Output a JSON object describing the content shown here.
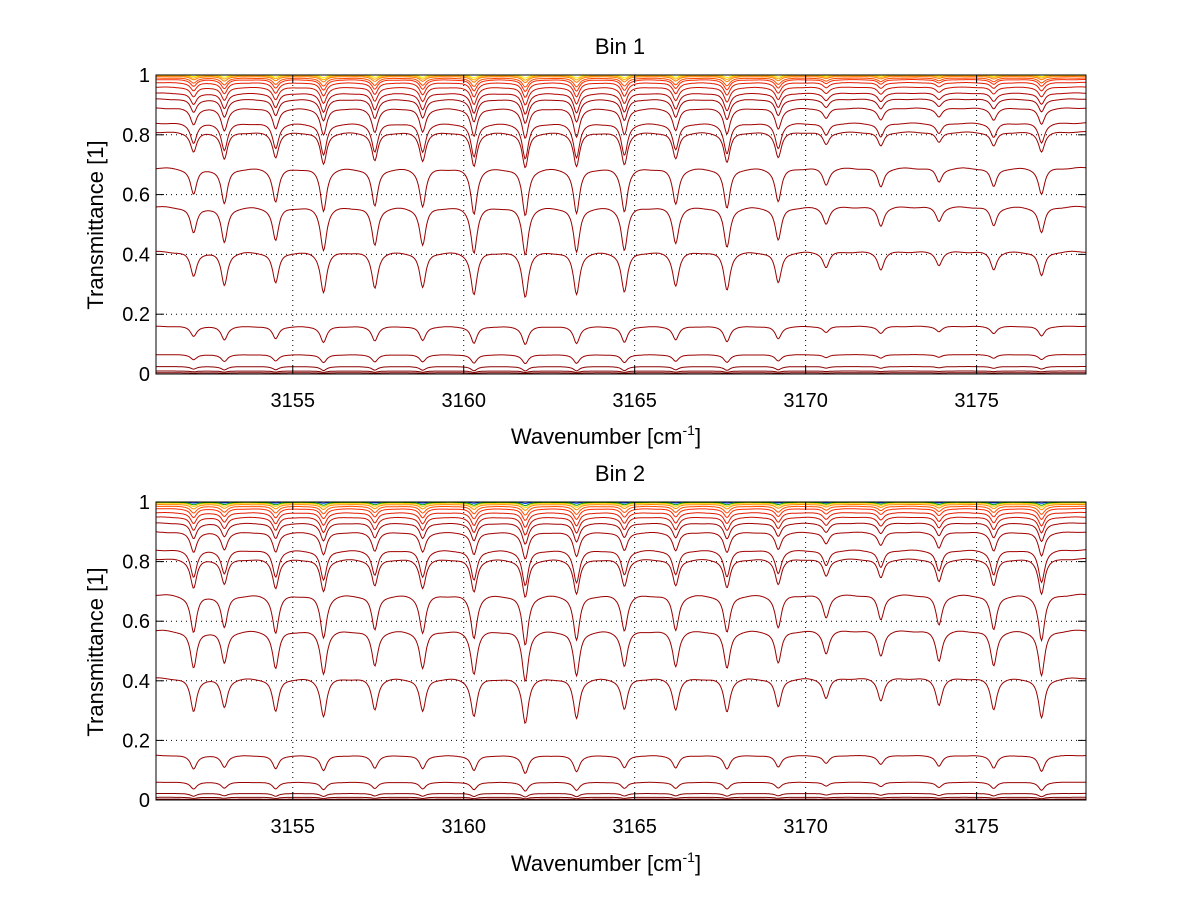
{
  "chart_data": [
    {
      "type": "line",
      "title": "Bin 1",
      "xlabel": "Wavenumber [cm",
      "xlabel_sup": "-1",
      "xlabel_close": "]",
      "ylabel": "Transmittance [1]",
      "xlim": [
        3151,
        3178.2
      ],
      "ylim": [
        0,
        1
      ],
      "xticks": [
        3155,
        3160,
        3165,
        3170,
        3175
      ],
      "xtick_labels": [
        "3155",
        "3160",
        "3165",
        "3170",
        "3175"
      ],
      "yticks": [
        0,
        0.2,
        0.4,
        0.6,
        0.8,
        1
      ],
      "ytick_labels": [
        "0",
        "0.2",
        "0.4",
        "0.6",
        "0.8",
        "1"
      ],
      "grid": true,
      "absorption_lines": [
        {
          "x": 3152.1,
          "rel_depth": 0.55
        },
        {
          "x": 3153.0,
          "rel_depth": 0.75
        },
        {
          "x": 3154.5,
          "rel_depth": 0.7
        },
        {
          "x": 3155.9,
          "rel_depth": 0.9
        },
        {
          "x": 3157.4,
          "rel_depth": 0.8
        },
        {
          "x": 3158.8,
          "rel_depth": 0.8
        },
        {
          "x": 3160.3,
          "rel_depth": 0.95
        },
        {
          "x": 3161.8,
          "rel_depth": 1.0
        },
        {
          "x": 3163.3,
          "rel_depth": 0.95
        },
        {
          "x": 3164.7,
          "rel_depth": 0.9
        },
        {
          "x": 3166.2,
          "rel_depth": 0.75
        },
        {
          "x": 3167.7,
          "rel_depth": 0.85
        },
        {
          "x": 3169.2,
          "rel_depth": 0.7
        },
        {
          "x": 3170.6,
          "rel_depth": 0.35
        },
        {
          "x": 3172.2,
          "rel_depth": 0.4
        },
        {
          "x": 3173.9,
          "rel_depth": 0.3
        },
        {
          "x": 3175.5,
          "rel_depth": 0.4
        },
        {
          "x": 3176.9,
          "rel_depth": 0.55
        }
      ],
      "series": [
        {
          "baseline": 1.0,
          "depth": 0.01,
          "color": "#ffee00"
        },
        {
          "baseline": 0.998,
          "depth": 0.015,
          "color": "#ffb000"
        },
        {
          "baseline": 0.995,
          "depth": 0.02,
          "color": "#ff7a00"
        },
        {
          "baseline": 0.99,
          "depth": 0.03,
          "color": "#ff4a00"
        },
        {
          "baseline": 0.985,
          "depth": 0.04,
          "color": "#ff2a00"
        },
        {
          "baseline": 0.975,
          "depth": 0.05,
          "color": "#e31a00"
        },
        {
          "baseline": 0.96,
          "depth": 0.06,
          "color": "#cc1100"
        },
        {
          "baseline": 0.94,
          "depth": 0.07,
          "color": "#b00000"
        },
        {
          "baseline": 0.92,
          "depth": 0.08,
          "color": "#a00000"
        },
        {
          "baseline": 0.89,
          "depth": 0.1,
          "color": "#a00000"
        },
        {
          "baseline": 0.84,
          "depth": 0.12,
          "color": "#a00000"
        },
        {
          "baseline": 0.81,
          "depth": 0.12,
          "color": "#990000"
        },
        {
          "baseline": 0.69,
          "depth": 0.16,
          "color": "#990000"
        },
        {
          "baseline": 0.56,
          "depth": 0.16,
          "color": "#990000"
        },
        {
          "baseline": 0.41,
          "depth": 0.15,
          "color": "#990000"
        },
        {
          "baseline": 0.16,
          "depth": 0.06,
          "color": "#990000"
        },
        {
          "baseline": 0.065,
          "depth": 0.03,
          "color": "#990000"
        },
        {
          "baseline": 0.025,
          "depth": 0.015,
          "color": "#8a0000"
        },
        {
          "baseline": 0.01,
          "depth": 0.005,
          "color": "#800000"
        },
        {
          "baseline": 0.004,
          "depth": 0.002,
          "color": "#800000"
        }
      ]
    },
    {
      "type": "line",
      "title": "Bin 2",
      "xlabel": "Wavenumber [cm",
      "xlabel_sup": "-1",
      "xlabel_close": "]",
      "ylabel": "Transmittance [1]",
      "xlim": [
        3151,
        3178.2
      ],
      "ylim": [
        0,
        1
      ],
      "xticks": [
        3155,
        3160,
        3165,
        3170,
        3175
      ],
      "xtick_labels": [
        "3155",
        "3160",
        "3165",
        "3170",
        "3175"
      ],
      "yticks": [
        0,
        0.2,
        0.4,
        0.6,
        0.8,
        1
      ],
      "ytick_labels": [
        "0",
        "0.2",
        "0.4",
        "0.6",
        "0.8",
        "1"
      ],
      "grid": true,
      "absorption_lines": [
        {
          "x": 3152.1,
          "rel_depth": 0.75
        },
        {
          "x": 3153.0,
          "rel_depth": 0.65
        },
        {
          "x": 3154.5,
          "rel_depth": 0.75
        },
        {
          "x": 3155.9,
          "rel_depth": 0.85
        },
        {
          "x": 3157.4,
          "rel_depth": 0.7
        },
        {
          "x": 3158.8,
          "rel_depth": 0.75
        },
        {
          "x": 3160.3,
          "rel_depth": 0.85
        },
        {
          "x": 3161.8,
          "rel_depth": 1.0
        },
        {
          "x": 3163.3,
          "rel_depth": 0.9
        },
        {
          "x": 3164.7,
          "rel_depth": 0.7
        },
        {
          "x": 3166.2,
          "rel_depth": 0.7
        },
        {
          "x": 3167.7,
          "rel_depth": 0.75
        },
        {
          "x": 3169.2,
          "rel_depth": 0.65
        },
        {
          "x": 3170.6,
          "rel_depth": 0.45
        },
        {
          "x": 3172.2,
          "rel_depth": 0.5
        },
        {
          "x": 3173.9,
          "rel_depth": 0.6
        },
        {
          "x": 3175.5,
          "rel_depth": 0.7
        },
        {
          "x": 3176.9,
          "rel_depth": 0.9
        }
      ],
      "series": [
        {
          "baseline": 1.0,
          "depth": 0.005,
          "color": "#003cff"
        },
        {
          "baseline": 0.998,
          "depth": 0.01,
          "color": "#00a000"
        },
        {
          "baseline": 0.996,
          "depth": 0.015,
          "color": "#ffd200"
        },
        {
          "baseline": 0.992,
          "depth": 0.02,
          "color": "#ff8c00"
        },
        {
          "baseline": 0.986,
          "depth": 0.03,
          "color": "#ff5000"
        },
        {
          "baseline": 0.978,
          "depth": 0.04,
          "color": "#ff2a00"
        },
        {
          "baseline": 0.965,
          "depth": 0.05,
          "color": "#e31a00"
        },
        {
          "baseline": 0.95,
          "depth": 0.06,
          "color": "#c80e00"
        },
        {
          "baseline": 0.93,
          "depth": 0.07,
          "color": "#a00000"
        },
        {
          "baseline": 0.9,
          "depth": 0.09,
          "color": "#a00000"
        },
        {
          "baseline": 0.84,
          "depth": 0.12,
          "color": "#a00000"
        },
        {
          "baseline": 0.81,
          "depth": 0.13,
          "color": "#990000"
        },
        {
          "baseline": 0.69,
          "depth": 0.17,
          "color": "#990000"
        },
        {
          "baseline": 0.57,
          "depth": 0.17,
          "color": "#990000"
        },
        {
          "baseline": 0.41,
          "depth": 0.15,
          "color": "#990000"
        },
        {
          "baseline": 0.15,
          "depth": 0.06,
          "color": "#990000"
        },
        {
          "baseline": 0.06,
          "depth": 0.03,
          "color": "#990000"
        },
        {
          "baseline": 0.022,
          "depth": 0.012,
          "color": "#8a0000"
        },
        {
          "baseline": 0.009,
          "depth": 0.005,
          "color": "#800000"
        },
        {
          "baseline": 0.003,
          "depth": 0.002,
          "color": "#800000"
        }
      ]
    }
  ]
}
